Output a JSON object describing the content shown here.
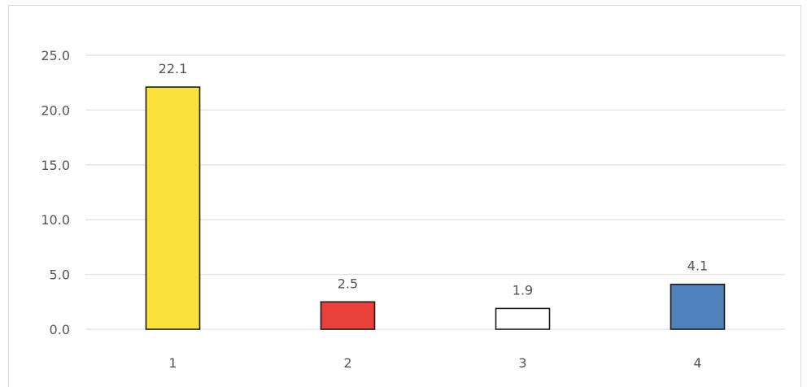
{
  "chart_data": {
    "type": "bar",
    "categories": [
      "1",
      "2",
      "3",
      "4"
    ],
    "values": [
      22.1,
      2.5,
      1.9,
      4.1
    ],
    "data_labels": [
      "22.1",
      "2.5",
      "1.9",
      "4.1"
    ],
    "bar_colors": [
      "#f9e03b",
      "#e8413a",
      "#ffffff",
      "#4f81bd"
    ],
    "bar_stroke": "#1a1a1a",
    "title": "",
    "xlabel": "",
    "ylabel": "",
    "ylim": [
      0,
      25
    ],
    "yticks": [
      "0.0",
      "5.0",
      "10.0",
      "15.0",
      "20.0",
      "25.0"
    ],
    "ytick_values": [
      0,
      5,
      10,
      15,
      20,
      25
    ],
    "grid": true,
    "grid_color": "#e6e6e6",
    "legend": "none"
  }
}
